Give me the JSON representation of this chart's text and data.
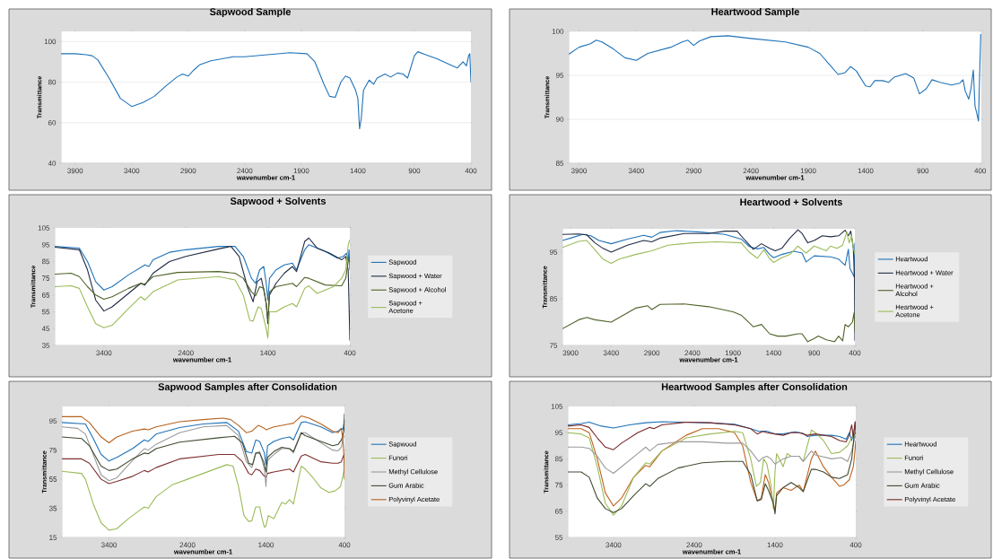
{
  "chart_data": [
    {
      "type": "line",
      "title": "Sapwood Sample",
      "xlabel": "wavenumber cm-1",
      "ylabel": "Transmittance",
      "xlim": [
        4025,
        400
      ],
      "xticks": [
        3900,
        3400,
        2900,
        2400,
        1900,
        1400,
        900,
        400
      ],
      "ylim": [
        40,
        105
      ],
      "yticks": [
        40,
        60,
        80,
        100
      ],
      "grid": "y",
      "series": [
        {
          "color": "#1f72b8",
          "x": [
            4025,
            3900,
            3800,
            3750,
            3700,
            3600,
            3500,
            3400,
            3300,
            3200,
            3100,
            3000,
            2950,
            2900,
            2850,
            2800,
            2700,
            2500,
            2400,
            2200,
            2000,
            1850,
            1780,
            1700,
            1650,
            1600,
            1550,
            1510,
            1470,
            1420,
            1400,
            1385,
            1370,
            1350,
            1300,
            1260,
            1230,
            1160,
            1110,
            1050,
            1000,
            960,
            900,
            870,
            800,
            700,
            600,
            520,
            470,
            440,
            420,
            410,
            400
          ],
          "values": [
            94,
            94,
            93.5,
            93,
            91,
            82,
            72,
            68,
            70,
            73,
            78,
            82.5,
            84,
            83,
            86,
            88.5,
            90.5,
            92.5,
            92.5,
            93.5,
            94.5,
            94,
            90,
            79,
            73,
            72.5,
            80,
            83,
            82,
            76,
            72,
            57,
            62,
            76,
            81,
            79,
            82,
            84,
            82.5,
            84.5,
            84,
            82,
            93,
            95,
            93.5,
            91.5,
            89,
            87,
            90,
            88,
            93,
            94,
            80
          ]
        }
      ]
    },
    {
      "type": "line",
      "title": "Heartwood Sample",
      "xlabel": "wavenumber cm-1",
      "ylabel": "Transmittance",
      "xlim": [
        3990,
        390
      ],
      "xticks": [
        3900,
        3400,
        2900,
        2400,
        1900,
        1400,
        900,
        400
      ],
      "ylim": [
        85,
        100
      ],
      "yticks": [
        85,
        90,
        95,
        100
      ],
      "grid": "y",
      "series": [
        {
          "color": "#1f72b8",
          "x": [
            3990,
            3900,
            3800,
            3750,
            3700,
            3600,
            3500,
            3400,
            3300,
            3100,
            3000,
            2950,
            2900,
            2850,
            2750,
            2600,
            2400,
            2100,
            1900,
            1800,
            1700,
            1640,
            1580,
            1530,
            1480,
            1400,
            1360,
            1320,
            1250,
            1200,
            1150,
            1050,
            980,
            930,
            870,
            820,
            750,
            650,
            580,
            550,
            530,
            500,
            480,
            460,
            445,
            430,
            415,
            405,
            395
          ],
          "values": [
            97.4,
            98.2,
            98.6,
            99,
            98.8,
            98,
            97,
            96.7,
            97.5,
            98.2,
            98.8,
            99,
            98.4,
            98.9,
            99.4,
            99.5,
            99.2,
            98.8,
            98.2,
            97.5,
            96,
            95.1,
            95.3,
            96,
            95.5,
            93.8,
            93.7,
            94.4,
            94.4,
            94.2,
            94.8,
            95.2,
            94.7,
            92.9,
            93.5,
            94.5,
            94.2,
            93.9,
            94.1,
            94.5,
            93.2,
            92.3,
            93.5,
            95.6,
            91.5,
            90.7,
            89.8,
            95,
            99.7
          ]
        }
      ]
    },
    {
      "type": "line",
      "title": "Sapwood + Solvents",
      "xlabel": "wavenumber cm-1",
      "ylabel": "Transmittance",
      "xlim": [
        4000,
        400
      ],
      "xticks": [
        3400,
        2400,
        1400,
        400
      ],
      "ylim": [
        35,
        105
      ],
      "yticks": [
        35,
        45,
        55,
        65,
        75,
        85,
        95,
        105
      ],
      "legend": "right",
      "series": [
        {
          "name": "Sapwood",
          "color": "#1f72b8",
          "x": [
            4000,
            3700,
            3600,
            3500,
            3400,
            3300,
            3100,
            2900,
            2850,
            2800,
            2600,
            2400,
            2000,
            1800,
            1700,
            1600,
            1550,
            1500,
            1450,
            1420,
            1400,
            1380,
            1300,
            1200,
            1100,
            1050,
            950,
            900,
            800,
            700,
            550,
            480,
            440,
            420,
            410,
            400
          ],
          "values": [
            94,
            93,
            85,
            73,
            68,
            70,
            77,
            83,
            82,
            86,
            90.5,
            92,
            94,
            94,
            88,
            75,
            72,
            80,
            82,
            72,
            62,
            75,
            80,
            83,
            84,
            80,
            92,
            95,
            93,
            91,
            87,
            88,
            90,
            85,
            92,
            80
          ]
        },
        {
          "name": "Sapwood + Water",
          "color": "#1f2a44",
          "x": [
            4000,
            3700,
            3600,
            3500,
            3400,
            3300,
            3100,
            2950,
            2900,
            2800,
            2600,
            2400,
            2000,
            1850,
            1750,
            1650,
            1580,
            1530,
            1480,
            1450,
            1420,
            1400,
            1380,
            1300,
            1200,
            1100,
            1050,
            950,
            900,
            800,
            650,
            500,
            450,
            420,
            405,
            400
          ],
          "values": [
            93.5,
            92,
            80,
            62,
            55.5,
            58,
            66,
            72,
            71,
            78,
            85,
            88,
            92.5,
            94,
            88,
            70,
            61,
            73,
            75,
            68,
            60,
            48,
            65,
            72,
            78,
            82,
            79,
            97,
            99,
            93,
            90,
            86,
            88,
            80,
            50,
            38
          ]
        },
        {
          "name": "Sapwood + Alcohol",
          "color": "#4f6228",
          "x": [
            4000,
            3800,
            3700,
            3600,
            3500,
            3400,
            3300,
            3100,
            2950,
            2900,
            2800,
            2500,
            2000,
            1800,
            1700,
            1600,
            1550,
            1500,
            1450,
            1420,
            1400,
            1380,
            1300,
            1100,
            1050,
            950,
            900,
            700,
            500,
            450,
            420,
            400
          ],
          "values": [
            77.5,
            78,
            76,
            70,
            65,
            62.5,
            64,
            69,
            72,
            71.5,
            76,
            78.5,
            79,
            78,
            75,
            67,
            64.5,
            70,
            69,
            60,
            50,
            67,
            70,
            72,
            70,
            75.5,
            75,
            71,
            70.5,
            75,
            85,
            88
          ]
        },
        {
          "name": "Sapwood + Acetone",
          "color": "#9bbb59",
          "x": [
            4000,
            3800,
            3700,
            3600,
            3500,
            3400,
            3300,
            3100,
            2950,
            2900,
            2800,
            2500,
            2000,
            1800,
            1700,
            1620,
            1580,
            1520,
            1480,
            1420,
            1400,
            1380,
            1300,
            1200,
            1100,
            1050,
            950,
            900,
            800,
            700,
            600,
            500,
            450,
            420,
            400
          ],
          "values": [
            70,
            70.5,
            69,
            58,
            48,
            45.5,
            47,
            57,
            64,
            62,
            67,
            74,
            76,
            74,
            65,
            50,
            49.5,
            58,
            57,
            45,
            39.5,
            55,
            55,
            58,
            60,
            58,
            69,
            70.5,
            66,
            68,
            70,
            75,
            80,
            95,
            98
          ]
        }
      ]
    },
    {
      "type": "line",
      "title": "Heartwood + Solvents",
      "xlabel": "wavenumber cm-1",
      "ylabel": "Transmittance",
      "xlim": [
        4000,
        400
      ],
      "xticks": [
        3900,
        3400,
        2900,
        2400,
        1900,
        1400,
        900,
        400
      ],
      "ylim": [
        75,
        100
      ],
      "yticks": [
        75,
        85,
        95
      ],
      "legend": "right",
      "series": [
        {
          "name": "Heartwood",
          "color": "#1f72b8",
          "x": [
            4000,
            3900,
            3750,
            3650,
            3550,
            3400,
            3200,
            3000,
            2900,
            2800,
            2600,
            2300,
            2000,
            1800,
            1700,
            1600,
            1520,
            1450,
            1400,
            1300,
            1150,
            1050,
            1000,
            900,
            700,
            600,
            520,
            480,
            460,
            430,
            410,
            400
          ],
          "values": [
            97.5,
            98,
            98.8,
            98.5,
            97.5,
            96.8,
            97.8,
            98.6,
            98.2,
            99.2,
            99.6,
            99.3,
            98.8,
            97.8,
            96.2,
            95.7,
            96,
            94.5,
            93.8,
            94.5,
            95.2,
            94.8,
            92.9,
            94.2,
            94,
            93.5,
            92.2,
            95.6,
            91.5,
            90.5,
            89.7,
            97
          ]
        },
        {
          "name": "Heartwood + Water",
          "color": "#1f2a44",
          "x": [
            4000,
            3800,
            3700,
            3600,
            3500,
            3400,
            3200,
            3000,
            2900,
            2800,
            2500,
            2200,
            2000,
            1850,
            1750,
            1650,
            1550,
            1450,
            1380,
            1300,
            1200,
            1100,
            1050,
            980,
            900,
            800,
            700,
            600,
            520,
            480,
            450,
            420,
            405,
            400
          ],
          "values": [
            98.8,
            98.9,
            98.7,
            97,
            95.8,
            95,
            96.5,
            97.5,
            97.2,
            98,
            99,
            99,
            99.5,
            99.5,
            97.5,
            95.6,
            96.8,
            95.8,
            95.3,
            95.8,
            98,
            99.8,
            99,
            97,
            97.5,
            98.5,
            98.3,
            98.5,
            99.7,
            98.5,
            99.5,
            96,
            90,
            76
          ]
        },
        {
          "name": "Heartwood + Alcohol",
          "color": "#4f6228",
          "x": [
            4000,
            3800,
            3700,
            3600,
            3400,
            3300,
            3100,
            2950,
            2900,
            2800,
            2500,
            2200,
            1900,
            1800,
            1650,
            1550,
            1450,
            1350,
            1250,
            1100,
            1050,
            980,
            900,
            850,
            750,
            650,
            600,
            550,
            520,
            480,
            430,
            410,
            400
          ],
          "values": [
            78.6,
            80.5,
            81,
            80.5,
            80,
            81,
            83,
            83.5,
            82.7,
            83.8,
            83.9,
            83.3,
            82.2,
            81.5,
            79,
            79.5,
            77.5,
            77,
            77,
            77.5,
            77.5,
            75.8,
            76.5,
            77,
            76.2,
            75.8,
            77,
            76,
            79.5,
            79,
            80,
            82,
            78
          ]
        },
        {
          "name": "Heartwood + Acetone",
          "color": "#9bbb59",
          "x": [
            4000,
            3800,
            3700,
            3600,
            3500,
            3400,
            3300,
            3100,
            2900,
            2700,
            2400,
            2100,
            1800,
            1700,
            1600,
            1520,
            1450,
            1400,
            1300,
            1200,
            1100,
            1050,
            1000,
            900,
            750,
            700,
            620,
            550,
            500,
            470,
            440,
            420,
            400
          ],
          "values": [
            96,
            97.3,
            97.5,
            95.5,
            93.5,
            92.6,
            93.5,
            94.5,
            95.3,
            96.5,
            97,
            97.2,
            97,
            95,
            93.7,
            95.5,
            93.6,
            92.8,
            93.8,
            94.5,
            96.3,
            95.5,
            94.8,
            96.3,
            95.3,
            96.3,
            95.8,
            96.5,
            99.3,
            97,
            98.5,
            96,
            94.5
          ]
        }
      ]
    },
    {
      "type": "line",
      "title": "Sapwood Samples after Consolidation",
      "xlabel": "wavenumber cm-1",
      "ylabel": "Transmittance",
      "xlim": [
        4000,
        400
      ],
      "xticks": [
        3400,
        2400,
        1400,
        400
      ],
      "ylim": [
        15,
        105
      ],
      "yticks": [
        15,
        35,
        55,
        75,
        95
      ],
      "legend": "right",
      "series": [
        {
          "name": "Sapwood",
          "color": "#1f72b8",
          "x": [
            4000,
            3700,
            3600,
            3500,
            3400,
            3300,
            3100,
            2950,
            2900,
            2800,
            2500,
            2200,
            1900,
            1750,
            1650,
            1580,
            1530,
            1480,
            1420,
            1400,
            1380,
            1300,
            1200,
            1100,
            1050,
            950,
            900,
            700,
            550,
            480,
            440,
            420,
            405,
            400
          ],
          "values": [
            94,
            93,
            83,
            72,
            67.5,
            70,
            76,
            82,
            81,
            86,
            90.5,
            93,
            94,
            88,
            74,
            73,
            82,
            81,
            73,
            65,
            78,
            81,
            83,
            84,
            82,
            94,
            94.5,
            91,
            87,
            88,
            90,
            89,
            94,
            96
          ]
        },
        {
          "color": "#7f2f2f",
          "x": [
            4000,
            3750,
            3650,
            3500,
            3400,
            3300,
            3100,
            2950,
            2900,
            2800,
            2500,
            2000,
            1800,
            1700,
            1620,
            1580,
            1530,
            1480,
            1420,
            1400,
            1380,
            1300,
            1100,
            1050,
            950,
            900,
            700,
            550,
            480,
            440,
            420,
            405,
            400
          ],
          "values": [
            69,
            69,
            66,
            55,
            52,
            53.5,
            57,
            61,
            60,
            63,
            69,
            72,
            72,
            67,
            59,
            58,
            62,
            61,
            57,
            56.5,
            59,
            60,
            62,
            60,
            71,
            72,
            67,
            66,
            66,
            67,
            70,
            72,
            64
          ]
        },
        {
          "name": "Funori",
          "color": "#9bbb59",
          "x": [
            4000,
            3750,
            3700,
            3600,
            3500,
            3400,
            3300,
            3150,
            3000,
            2950,
            2900,
            2800,
            2600,
            2400,
            2100,
            1900,
            1820,
            1750,
            1680,
            1620,
            1580,
            1530,
            1480,
            1450,
            1420,
            1400,
            1370,
            1300,
            1200,
            1150,
            1100,
            1050,
            950,
            900,
            800,
            700,
            600,
            520,
            450,
            420,
            400
          ],
          "values": [
            60.5,
            59,
            55,
            38,
            25,
            20,
            21,
            28,
            34,
            36,
            35,
            43,
            51,
            55,
            61,
            65,
            64,
            50,
            30,
            26,
            26.5,
            36,
            36,
            28,
            22,
            23,
            30,
            28,
            39,
            38,
            41,
            38,
            64,
            62,
            56,
            49,
            46,
            47,
            50,
            57,
            63
          ]
        },
        {
          "name": "Methyl Cellulose",
          "color": "#9a9a9a",
          "x": [
            4000,
            3800,
            3700,
            3600,
            3500,
            3400,
            3300,
            3100,
            2950,
            2900,
            2800,
            2500,
            2200,
            1900,
            1750,
            1650,
            1580,
            1530,
            1480,
            1420,
            1400,
            1380,
            1300,
            1200,
            1100,
            1050,
            950,
            900,
            700,
            550,
            480,
            440,
            420,
            400
          ],
          "values": [
            91,
            90,
            86,
            72,
            58,
            54,
            56,
            68,
            76,
            75,
            79,
            87,
            91,
            92,
            85,
            67,
            63,
            73,
            74,
            62,
            50,
            68,
            72,
            76,
            76,
            73,
            87,
            87,
            80,
            75,
            74.5,
            77,
            83,
            85
          ]
        },
        {
          "name": "Gum Arabic",
          "color": "#3f4a30",
          "x": [
            4000,
            3750,
            3650,
            3500,
            3400,
            3300,
            3100,
            2950,
            2900,
            2800,
            2500,
            2000,
            1800,
            1700,
            1620,
            1570,
            1530,
            1480,
            1430,
            1400,
            1380,
            1300,
            1200,
            1100,
            1050,
            950,
            900,
            700,
            550,
            480,
            440,
            420,
            405,
            400
          ],
          "values": [
            84,
            83,
            78,
            64,
            61,
            62,
            69,
            73,
            72.5,
            76,
            80.5,
            83.5,
            84.5,
            80,
            66,
            65,
            73,
            73,
            67,
            60,
            70,
            74,
            77,
            76,
            74,
            87,
            85,
            81,
            78,
            79,
            82,
            85,
            89,
            100
          ]
        },
        {
          "name": "Polyvinyl  Acetate",
          "color": "#b5621f",
          "x": [
            4000,
            3750,
            3650,
            3500,
            3400,
            3300,
            3100,
            2950,
            2900,
            2800,
            2500,
            2200,
            1950,
            1850,
            1750,
            1650,
            1580,
            1500,
            1420,
            1400,
            1300,
            1200,
            1100,
            1050,
            950,
            850,
            700,
            550,
            480,
            440,
            420,
            405,
            400
          ],
          "values": [
            98,
            98,
            94,
            84,
            80,
            84,
            88,
            89.5,
            89,
            91,
            94.5,
            96,
            97,
            96,
            92,
            87,
            88,
            92,
            90,
            89,
            91,
            92,
            93,
            93.5,
            98.5,
            97,
            93,
            88,
            87,
            90,
            82,
            70,
            55
          ]
        }
      ]
    },
    {
      "type": "line",
      "title": "Heartwood Samples after Consolidation",
      "xlabel": "wavenumber cm-1",
      "ylabel": "Transmittance",
      "xlim": [
        3965,
        400
      ],
      "xticks": [
        3400,
        2400,
        1400,
        400
      ],
      "ylim": [
        55,
        105
      ],
      "yticks": [
        55,
        65,
        75,
        85,
        95,
        105
      ],
      "legend": "right",
      "series": [
        {
          "name": "Heartwood",
          "color": "#1f72b8",
          "x": [
            3965,
            3800,
            3700,
            3550,
            3400,
            3200,
            3000,
            2800,
            2500,
            2200,
            1900,
            1700,
            1600,
            1500,
            1400,
            1300,
            1150,
            1050,
            1000,
            900,
            700,
            600,
            520,
            480,
            450,
            420,
            400
          ],
          "values": [
            98,
            98.5,
            99,
            97.5,
            96.8,
            98,
            98.8,
            99.2,
            99,
            98.7,
            98.2,
            96.5,
            95.5,
            95.6,
            94.5,
            94.5,
            95.3,
            94.7,
            93.5,
            94,
            94,
            93.5,
            92.5,
            95,
            92,
            96,
            99.5
          ]
        },
        {
          "color": "#c0621c",
          "x": [
            3965,
            3800,
            3700,
            3600,
            3500,
            3400,
            3300,
            3150,
            3000,
            2950,
            2800,
            2500,
            2300,
            2100,
            1900,
            1800,
            1700,
            1620,
            1570,
            1520,
            1480,
            1420,
            1400,
            1380,
            1300,
            1200,
            1100,
            1050,
            950,
            900,
            800,
            700,
            600,
            550,
            480,
            430,
            410,
            400
          ],
          "values": [
            96.5,
            96.5,
            95,
            85,
            72,
            67,
            70,
            78,
            82.5,
            82,
            88,
            94,
            96.5,
            96.5,
            95,
            90,
            76,
            69,
            70,
            79,
            76,
            68,
            65,
            72,
            74,
            73,
            75,
            72.5,
            85,
            88,
            82,
            78,
            74.5,
            75,
            77,
            82,
            88,
            92
          ]
        },
        {
          "name": "Funori",
          "color": "#9bbb59",
          "x": [
            3965,
            3800,
            3700,
            3600,
            3500,
            3400,
            3300,
            3150,
            3000,
            2950,
            2800,
            2500,
            2200,
            1900,
            1800,
            1700,
            1630,
            1580,
            1540,
            1500,
            1450,
            1420,
            1400,
            1380,
            1330,
            1300,
            1250,
            1200,
            1100,
            1050,
            950,
            900,
            800,
            700,
            600,
            500,
            450,
            420,
            400
          ],
          "values": [
            95,
            94.5,
            93,
            82,
            68,
            63.5,
            67,
            78,
            83.5,
            83,
            88,
            93,
            94.5,
            95.5,
            95,
            85,
            74.5,
            76,
            85,
            83,
            75,
            66,
            80,
            87,
            84,
            82,
            87,
            86,
            86,
            84,
            96,
            95,
            92,
            87,
            87.5,
            90,
            93,
            95,
            95
          ]
        },
        {
          "name": "Methyl Cellulose",
          "color": "#9a9a9a",
          "x": [
            3965,
            3800,
            3700,
            3600,
            3500,
            3400,
            3300,
            3100,
            3000,
            2950,
            2850,
            2600,
            2300,
            2000,
            1800,
            1700,
            1600,
            1550,
            1500,
            1450,
            1400,
            1300,
            1200,
            1100,
            1050,
            950,
            900,
            700,
            580,
            500,
            450,
            420,
            400
          ],
          "values": [
            89.5,
            89.5,
            89,
            86,
            81.5,
            79.5,
            82,
            87,
            89.5,
            88,
            90.5,
            91.5,
            91.5,
            91,
            91,
            88,
            84,
            85.5,
            86,
            85,
            83,
            85,
            86,
            86,
            84,
            88,
            86.5,
            85,
            85.5,
            84,
            88,
            92,
            94
          ]
        },
        {
          "name": "Gum Arabic",
          "color": "#3f4a30",
          "x": [
            3965,
            3800,
            3700,
            3600,
            3500,
            3400,
            3300,
            3150,
            3000,
            2950,
            2850,
            2600,
            2300,
            2000,
            1800,
            1700,
            1620,
            1570,
            1520,
            1480,
            1420,
            1400,
            1380,
            1300,
            1200,
            1100,
            1050,
            950,
            900,
            800,
            700,
            600,
            500,
            450,
            420,
            400
          ],
          "values": [
            80,
            80,
            78,
            70,
            66,
            64.5,
            66,
            71,
            75.5,
            74.5,
            77.5,
            81.5,
            83.5,
            84,
            84,
            79,
            69,
            69.5,
            75.5,
            73,
            68,
            64,
            71,
            74,
            76,
            74,
            72.5,
            81,
            81,
            80,
            78,
            77.5,
            79,
            85,
            94,
            95
          ]
        },
        {
          "name": "Polyvinyl  Acetate",
          "color": "#772828",
          "x": [
            3965,
            3800,
            3700,
            3600,
            3500,
            3400,
            3300,
            3100,
            2950,
            2900,
            2800,
            2500,
            2200,
            1900,
            1700,
            1620,
            1550,
            1500,
            1400,
            1300,
            1200,
            1100,
            1000,
            900,
            700,
            600,
            520,
            480,
            450,
            430,
            410,
            400
          ],
          "values": [
            97.5,
            98,
            97,
            93,
            89.5,
            88.5,
            91,
            95,
            97,
            96.5,
            98,
            99,
            98.8,
            98,
            96.5,
            94.5,
            95.5,
            95,
            94.5,
            94,
            95,
            95,
            94,
            94.5,
            93.5,
            92,
            91.5,
            94,
            98,
            93,
            99,
            95
          ]
        }
      ]
    }
  ]
}
